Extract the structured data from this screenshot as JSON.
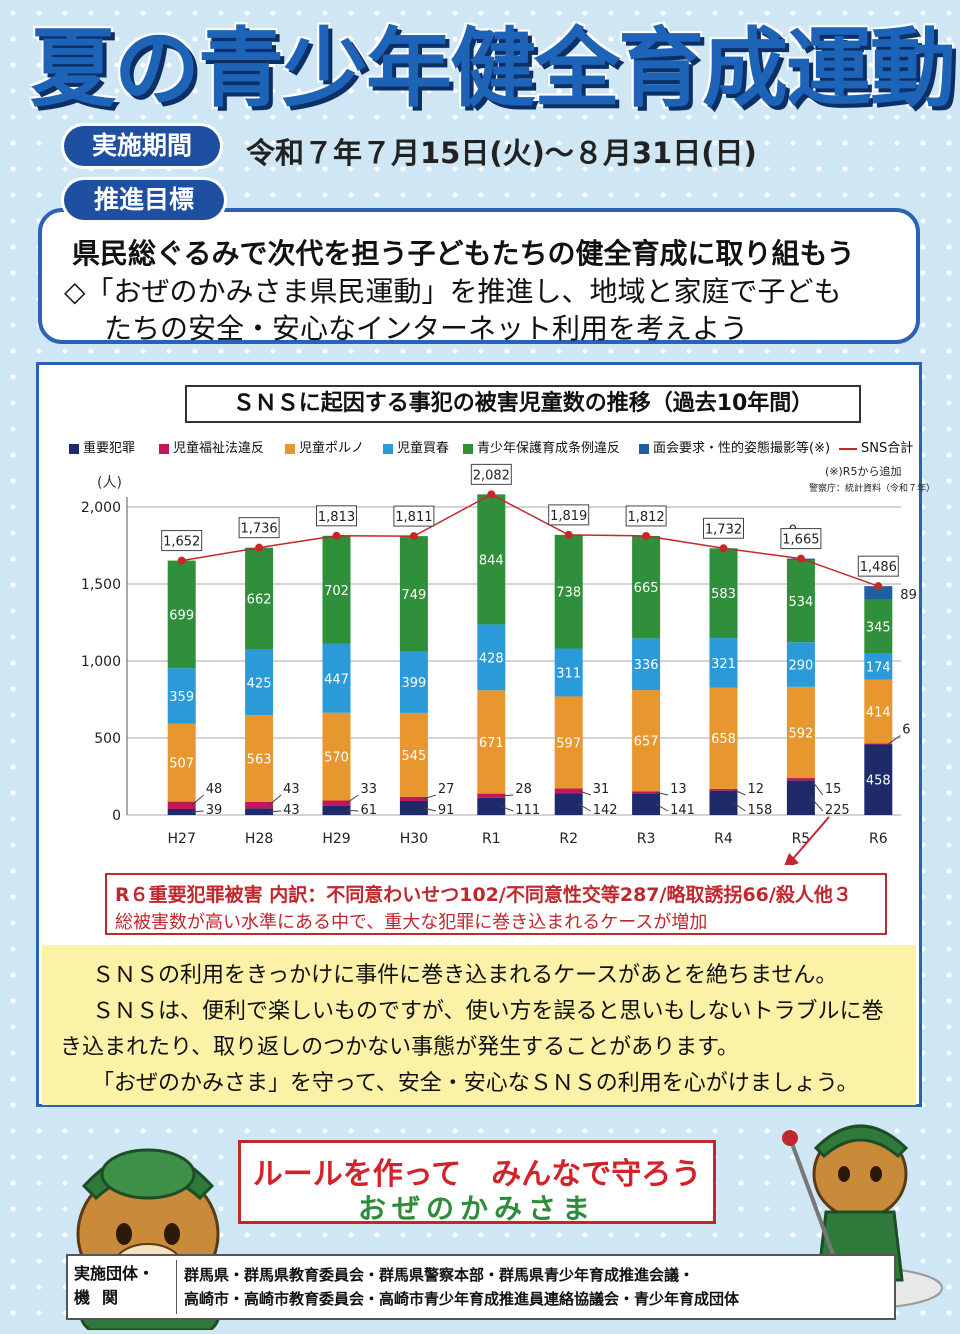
{
  "title": "夏の青少年健全育成運動",
  "period": {
    "label": "実施期間",
    "text": "令和７年７月15日(火)～８月31日(日)"
  },
  "goal": {
    "label": "推進目標",
    "line1": "県民総ぐるみで次代を担う子どもたちの健全育成に取り組もう",
    "line2": "◇「おぜのかみさま県民運動」を推進し、地域と家庭で子ども",
    "line3": "たちの安全・安心なインターネット利用を考えよう"
  },
  "chart_data": {
    "type": "bar",
    "title": "ＳＮＳに起因する事犯の被害児童数の推移（過去10年間）",
    "ylabel": "(人)",
    "ylim": [
      0,
      2000
    ],
    "yticks": [
      "0",
      "500",
      "1,000",
      "1,500",
      "2,000"
    ],
    "categories": [
      "H27",
      "H28",
      "H29",
      "H30",
      "R1",
      "R2",
      "R3",
      "R4",
      "R5",
      "R6"
    ],
    "series": [
      {
        "name": "重要犯罪",
        "color": "#1f2a6b",
        "values": [
          39,
          43,
          61,
          91,
          111,
          142,
          141,
          158,
          225,
          458
        ]
      },
      {
        "name": "児童福祉法違反",
        "color": "#c2185b",
        "values": [
          48,
          43,
          33,
          27,
          28,
          31,
          13,
          12,
          15,
          6
        ]
      },
      {
        "name": "児童ポルノ",
        "color": "#e8962e",
        "values": [
          507,
          563,
          570,
          545,
          671,
          597,
          657,
          658,
          592,
          414
        ]
      },
      {
        "name": "児童買春",
        "color": "#2a9bd8",
        "values": [
          359,
          425,
          447,
          399,
          428,
          311,
          336,
          321,
          290,
          174
        ]
      },
      {
        "name": "青少年保護育成条例違反",
        "color": "#2f8f3a",
        "values": [
          699,
          662,
          702,
          749,
          844,
          738,
          665,
          583,
          534,
          345
        ]
      },
      {
        "name": "面会要求・性的姿態撮影等(※)",
        "color": "#1f5fa0",
        "values": [
          0,
          0,
          0,
          0,
          0,
          0,
          0,
          0,
          9,
          89
        ]
      }
    ],
    "value_labels": {
      "重要犯罪": [
        "39",
        "43",
        "61",
        "91",
        "111",
        "142",
        "141",
        "158",
        "225",
        "458"
      ],
      "児童福祉法違反": [
        "48",
        "43",
        "33",
        "27",
        "28",
        "31",
        "13",
        "12",
        "15",
        "6"
      ],
      "児童ポルノ": [
        "507",
        "563",
        "570",
        "545",
        "671",
        "597",
        "657",
        "658",
        "592",
        "414"
      ],
      "児童買春": [
        "359",
        "425",
        "447",
        "399",
        "428",
        "311",
        "336",
        "321",
        "290",
        "174"
      ],
      "青少年保護育成条例違反": [
        "699",
        "662",
        "702",
        "749",
        "844",
        "738",
        "665",
        "583",
        "534",
        "345"
      ],
      "面会要求・性的姿態撮影等(※)": [
        "",
        "",
        "",
        "",
        "",
        "",
        "",
        "",
        "9",
        "89"
      ]
    },
    "line": {
      "name": "SNS合計",
      "color": "#c62828",
      "values": [
        1652,
        1736,
        1813,
        1811,
        2082,
        1819,
        1812,
        1732,
        1665,
        1486
      ],
      "labels": [
        "1,652",
        "1,736",
        "1,813",
        "1,811",
        "2,082",
        "1,819",
        "1,812",
        "1,732",
        "1,665",
        "1,486"
      ]
    },
    "legend_position": "top",
    "notes": [
      "(※)R5から追加",
      "警察庁：統計資料（令和７年）"
    ]
  },
  "r6_box": {
    "line1": "R６重要犯罪被害 内訳：不同意わいせつ102/不同意性交等287/略取誘拐66/殺人他３",
    "line2": "総被害数が高い水準にある中で、重大な犯罪に巻き込まれるケースが増加"
  },
  "message": {
    "line1": "ＳＮＳの利用をきっかけに事件に巻き込まれるケースがあとを絶ちません。",
    "line2": "ＳＮＳは、便利で楽しいものですが、使い方を誤ると思いもしないトラブルに巻",
    "line3": "き込まれたり、取り返しのつかない事態が発生することがあります。",
    "line4": "「おぜのかみさま」を守って、安全・安心なＳＮＳの利用を心がけましょう。"
  },
  "slogan": {
    "line1": "ルールを作って　みんなで守ろう",
    "line2": "おぜのかみさま"
  },
  "footer": {
    "label1": "実施団体・",
    "label2": "機関",
    "line1": "群馬県・群馬県教育委員会・群馬県警察本部・群馬県青少年育成推進会議・",
    "line2": "高崎市・高崎市教育委員会・高崎市青少年育成推進員連絡協議会・青少年育成団体"
  }
}
